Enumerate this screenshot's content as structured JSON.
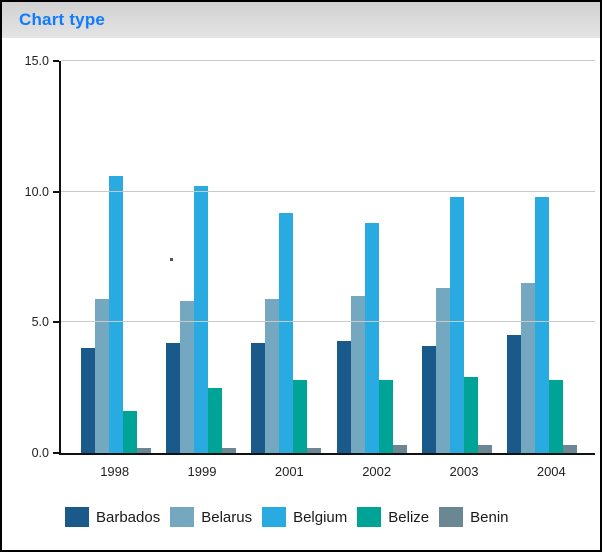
{
  "header": {
    "title": "Chart type"
  },
  "colors": {
    "title": "#0f7bff",
    "axis": "#111111",
    "gridline": "#c9c9c9",
    "header_gradient_top": "#d1d1d1",
    "header_gradient_bottom": "#e4e4e4"
  },
  "chart_data": {
    "type": "bar",
    "title": "Chart type",
    "categories": [
      "1998",
      "1999",
      "2001",
      "2002",
      "2003",
      "2004"
    ],
    "series": [
      {
        "name": "Barbados",
        "color": "#1a5a8a",
        "values": [
          4.0,
          4.2,
          4.2,
          4.3,
          4.1,
          4.5
        ]
      },
      {
        "name": "Belarus",
        "color": "#74a7c0",
        "values": [
          5.9,
          5.8,
          5.9,
          6.0,
          6.3,
          6.5
        ]
      },
      {
        "name": "Belgium",
        "color": "#29abe2",
        "values": [
          10.6,
          10.2,
          9.2,
          8.8,
          9.8,
          9.8
        ]
      },
      {
        "name": "Belize",
        "color": "#00a496",
        "values": [
          1.6,
          2.5,
          2.8,
          2.8,
          2.9,
          2.8
        ]
      },
      {
        "name": "Benin",
        "color": "#6b8794",
        "values": [
          0.2,
          0.2,
          0.2,
          0.3,
          0.3,
          0.3
        ]
      }
    ],
    "xlabel": "",
    "ylabel": "",
    "ylim": [
      0,
      15
    ],
    "y_ticks": [
      15,
      10,
      5,
      0
    ],
    "y_tick_labels": [
      "15.0",
      "10.0",
      "5.0",
      "0.0"
    ],
    "grid": true,
    "legend_position": "bottom"
  }
}
